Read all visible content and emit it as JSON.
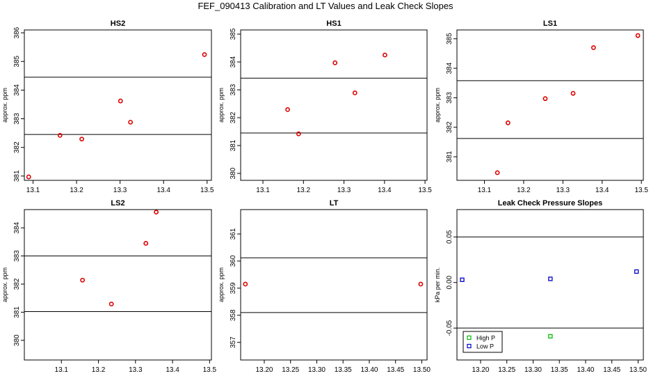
{
  "title": "FEF_090413  Calibration and LT Values and Leak Check Slopes",
  "chart_data": [
    {
      "type": "scatter",
      "title": "HS2",
      "xlabel": "",
      "ylabel": "approx. ppm",
      "xlim": [
        13.08,
        13.51
      ],
      "ylim": [
        380.85,
        386.1
      ],
      "xticks": [
        13.1,
        13.2,
        13.3,
        13.4,
        13.5
      ],
      "xticklabels": [
        "13.1",
        "13.2",
        "13.3",
        "13.4",
        "13.5"
      ],
      "yticks": [
        381,
        382,
        383,
        384,
        385,
        386
      ],
      "yticklabels": [
        "381",
        "382",
        "383",
        "384",
        "385",
        "386"
      ],
      "hlines": [
        382.45,
        384.45
      ],
      "series": [
        {
          "name": "values",
          "color": "#dd0000",
          "x": [
            13.09,
            13.162,
            13.212,
            13.301,
            13.324,
            13.494
          ],
          "y": [
            380.97,
            382.42,
            382.29,
            383.62,
            382.88,
            385.24
          ]
        }
      ]
    },
    {
      "type": "scatter",
      "title": "HS1",
      "xlabel": "",
      "ylabel": "approx. ppm",
      "xlim": [
        13.045,
        13.505
      ],
      "ylim": [
        379.75,
        385.15
      ],
      "xticks": [
        13.1,
        13.2,
        13.3,
        13.4,
        13.5
      ],
      "xticklabels": [
        "13.1",
        "13.2",
        "13.3",
        "13.4",
        "13.5"
      ],
      "yticks": [
        380,
        381,
        382,
        383,
        384,
        385
      ],
      "yticklabels": [
        "380",
        "381",
        "382",
        "383",
        "384",
        "385"
      ],
      "hlines": [
        381.45,
        383.42
      ],
      "series": [
        {
          "name": "values",
          "color": "#dd0000",
          "x": [
            13.161,
            13.188,
            13.278,
            13.327,
            13.401
          ],
          "y": [
            382.29,
            381.42,
            383.97,
            382.89,
            384.25
          ]
        }
      ]
    },
    {
      "type": "scatter",
      "title": "LS1",
      "xlabel": "",
      "ylabel": "approx. ppm",
      "xlim": [
        13.03,
        13.505
      ],
      "ylim": [
        380.2,
        385.3
      ],
      "xticks": [
        13.1,
        13.2,
        13.3,
        13.4,
        13.5
      ],
      "xticklabels": [
        "13.1",
        "13.2",
        "13.3",
        "13.4",
        "13.5"
      ],
      "yticks": [
        381,
        382,
        383,
        384,
        385
      ],
      "yticklabels": [
        "381",
        "382",
        "383",
        "384",
        "385"
      ],
      "hlines": [
        381.62,
        383.58
      ],
      "series": [
        {
          "name": "values",
          "color": "#dd0000",
          "x": [
            13.133,
            13.16,
            13.255,
            13.326,
            13.378,
            13.491
          ],
          "y": [
            380.46,
            382.15,
            382.97,
            383.15,
            384.7,
            385.11
          ]
        }
      ]
    },
    {
      "type": "scatter",
      "title": "LS2",
      "xlabel": "",
      "ylabel": "approx. ppm",
      "xlim": [
        13.0,
        13.505
      ],
      "ylim": [
        379.3,
        384.65
      ],
      "xticks": [
        13.1,
        13.2,
        13.3,
        13.4,
        13.5
      ],
      "xticklabels": [
        "13.1",
        "13.2",
        "13.3",
        "13.4",
        "13.5"
      ],
      "yticks": [
        380,
        381,
        382,
        383,
        384
      ],
      "yticklabels": [
        "380",
        "381",
        "382",
        "383",
        "384"
      ],
      "hlines": [
        381.02,
        383.0
      ],
      "series": [
        {
          "name": "values",
          "color": "#dd0000",
          "x": [
            13.157,
            13.235,
            13.328,
            13.356
          ],
          "y": [
            382.14,
            381.29,
            383.45,
            384.56
          ]
        }
      ]
    },
    {
      "type": "scatter",
      "title": "LT",
      "xlabel": "",
      "ylabel": "approx. ppm",
      "xlim": [
        13.155,
        13.51
      ],
      "ylim": [
        356.35,
        361.9
      ],
      "xticks": [
        13.2,
        13.25,
        13.3,
        13.35,
        13.4,
        13.45,
        13.5
      ],
      "xticklabels": [
        "13.20",
        "13.25",
        "13.30",
        "13.35",
        "13.40",
        "13.45",
        "13.50"
      ],
      "yticks": [
        357,
        358,
        359,
        360,
        361
      ],
      "yticklabels": [
        "357",
        "358",
        "359",
        "360",
        "361"
      ],
      "hlines": [
        358.1,
        360.12
      ],
      "series": [
        {
          "name": "values",
          "color": "#dd0000",
          "x": [
            13.164,
            13.498
          ],
          "y": [
            359.15,
            359.15
          ]
        }
      ]
    },
    {
      "type": "scatter",
      "title": "Leak Check Pressure Slopes",
      "xlabel": "",
      "ylabel": "kPa per min.",
      "xlim": [
        13.155,
        13.51
      ],
      "ylim": [
        -0.085,
        0.08
      ],
      "xticks": [
        13.2,
        13.25,
        13.3,
        13.35,
        13.4,
        13.45,
        13.5
      ],
      "xticklabels": [
        "13.20",
        "13.25",
        "13.30",
        "13.35",
        "13.40",
        "13.45",
        "13.50"
      ],
      "yticks": [
        -0.05,
        0.0,
        0.05
      ],
      "yticklabels": [
        "-0.05",
        "0.00",
        "0.05"
      ],
      "hlines": [
        -0.05,
        0.05
      ],
      "legend": {
        "position": "bottom-left",
        "entries": [
          "High P",
          "Low P"
        ]
      },
      "series": [
        {
          "name": "High P",
          "color": "#00bb00",
          "marker": "square",
          "x": [
            13.333
          ],
          "y": [
            -0.059
          ]
        },
        {
          "name": "Low P",
          "color": "#0000cc",
          "marker": "square",
          "x": [
            13.165,
            13.333,
            13.497
          ],
          "y": [
            0.003,
            0.004,
            0.012
          ]
        }
      ]
    }
  ]
}
